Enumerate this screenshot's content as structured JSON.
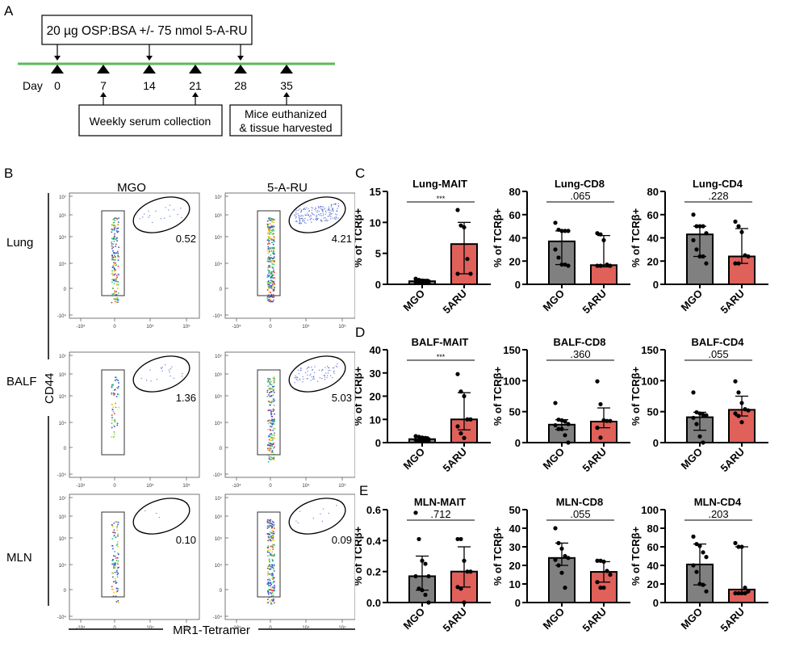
{
  "panels": {
    "A": "A",
    "B": "B",
    "C": "C",
    "D": "D",
    "E": "E"
  },
  "timeline": {
    "top_box": "20 µg OSP:BSA +/- 75 nmol 5-A-RU",
    "day_label": "Day",
    "days": [
      "0",
      "7",
      "14",
      "21",
      "28",
      "35"
    ],
    "immunization_days": [
      "0",
      "14",
      "28"
    ],
    "serum_days": [
      "7",
      "21"
    ],
    "serum_box": "Weekly serum collection",
    "harvest_box_line1": "Mice euthanized",
    "harvest_box_line2": "& tissue harvested",
    "harvest_day": "35",
    "line_color": "#5cb85c"
  },
  "flow": {
    "columns": [
      "MGO",
      "5-A-RU"
    ],
    "rows": [
      "Lung",
      "BALF",
      "MLN"
    ],
    "y_axis_label": "CD44",
    "x_axis_label": "MR1-Tetramer",
    "y_ticks": [
      "10^7",
      "10^6",
      "10^5",
      "10^4",
      "0",
      "-10^4"
    ],
    "x_ticks": [
      "-10^4",
      "0",
      "10^4",
      "10^5"
    ],
    "gate_values": [
      [
        "0.52",
        "4.21"
      ],
      [
        "1.36",
        "5.03"
      ],
      [
        "0.10",
        "0.09"
      ]
    ]
  },
  "colors": {
    "mgo": "#808080",
    "aru": "#e0605a"
  },
  "chart_data": [
    {
      "type": "bar",
      "title": "Lung-MAIT",
      "ylabel": "% of TCRβ+",
      "categories": [
        "MGO",
        "5ARU"
      ],
      "ylim": [
        0,
        15
      ],
      "yticks": [
        0,
        5,
        10,
        15
      ],
      "sig": "***",
      "series": [
        {
          "name": "MGO",
          "value": 0.5,
          "err_hi": 0.8,
          "err_lo": 0.3,
          "points": [
            0.9,
            0.7,
            0.6,
            0.5,
            0.5,
            0.4,
            0.4,
            0.3,
            0.3,
            0.2
          ]
        },
        {
          "name": "5ARU",
          "value": 6.5,
          "err_hi": 10.0,
          "err_lo": 1.7,
          "points": [
            12.0,
            9.5,
            9.2,
            4.1,
            1.7,
            1.7
          ]
        }
      ]
    },
    {
      "type": "bar",
      "title": "Lung-CD8",
      "ylabel": "% of TCRβ+",
      "categories": [
        "MGO",
        "5ARU"
      ],
      "ylim": [
        0,
        80
      ],
      "yticks": [
        0,
        20,
        40,
        60,
        80
      ],
      "sig": ".065",
      "series": [
        {
          "name": "MGO",
          "value": 37,
          "err_hi": 46,
          "err_lo": 17,
          "points": [
            53,
            47,
            46,
            46,
            46,
            30,
            23,
            17,
            17,
            16
          ]
        },
        {
          "name": "5ARU",
          "value": 16.5,
          "err_hi": 42,
          "err_lo": 15,
          "points": [
            44,
            43,
            38,
            17,
            16,
            16,
            16
          ]
        }
      ]
    },
    {
      "type": "bar",
      "title": "Lung-CD4",
      "ylabel": "% of TCRβ+",
      "categories": [
        "MGO",
        "5ARU"
      ],
      "ylim": [
        0,
        80
      ],
      "yticks": [
        0,
        20,
        40,
        60,
        80
      ],
      "sig": ".228",
      "series": [
        {
          "name": "MGO",
          "value": 43,
          "err_hi": 50,
          "err_lo": 24,
          "points": [
            60,
            50,
            50,
            50,
            44,
            38,
            30,
            24,
            24,
            18
          ]
        },
        {
          "name": "5ARU",
          "value": 24,
          "err_hi": 48,
          "err_lo": 18,
          "points": [
            54,
            50,
            45,
            25,
            24,
            18,
            18
          ]
        }
      ]
    },
    {
      "type": "bar",
      "title": "BALF-MAIT",
      "ylabel": "% of TCRβ+",
      "categories": [
        "MGO",
        "5ARU"
      ],
      "ylim": [
        0,
        40
      ],
      "yticks": [
        0,
        10,
        20,
        30,
        40
      ],
      "sig": "***",
      "series": [
        {
          "name": "MGO",
          "value": 1.5,
          "err_hi": 2.5,
          "err_lo": 0.6,
          "points": [
            2.8,
            2.5,
            2.2,
            2.0,
            1.5,
            1.2,
            1.0,
            0.8,
            0.6,
            0.5
          ]
        },
        {
          "name": "5ARU",
          "value": 10,
          "err_hi": 21.5,
          "err_lo": 5.5,
          "points": [
            29.5,
            22,
            20,
            10,
            10,
            7,
            4,
            2
          ]
        }
      ]
    },
    {
      "type": "bar",
      "title": "BALF-CD8",
      "ylabel": "% of TCRβ+",
      "categories": [
        "MGO",
        "5ARU"
      ],
      "ylim": [
        0,
        150
      ],
      "yticks": [
        0,
        50,
        100,
        150
      ],
      "sig": ".360",
      "series": [
        {
          "name": "MGO",
          "value": 29,
          "err_hi": 37,
          "err_lo": 21,
          "points": [
            64,
            37,
            36,
            34,
            30,
            28,
            22,
            22,
            12,
            0
          ]
        },
        {
          "name": "5ARU",
          "value": 34,
          "err_hi": 56,
          "err_lo": 24,
          "points": [
            99,
            62,
            36,
            35,
            35,
            24,
            8
          ]
        }
      ]
    },
    {
      "type": "bar",
      "title": "BALF-CD4",
      "ylabel": "% of TCRβ+",
      "categories": [
        "MGO",
        "5ARU"
      ],
      "ylim": [
        0,
        150
      ],
      "yticks": [
        0,
        50,
        100,
        150
      ],
      "sig": ".055",
      "series": [
        {
          "name": "MGO",
          "value": 41,
          "err_hi": 49,
          "err_lo": 20,
          "points": [
            81,
            49,
            47,
            45,
            44,
            40,
            30,
            10,
            0
          ]
        },
        {
          "name": "5ARU",
          "value": 53,
          "err_hi": 75,
          "err_lo": 43,
          "points": [
            99,
            81,
            64,
            54,
            52,
            47,
            43,
            33
          ]
        }
      ]
    },
    {
      "type": "bar",
      "title": "MLN-MAIT",
      "ylabel": "% of TCRβ+",
      "categories": [
        "MGO",
        "5ARU"
      ],
      "ylim": [
        0,
        0.6
      ],
      "yticks": [
        0.0,
        0.2,
        0.4,
        0.6
      ],
      "ytick_labels": [
        "0.0",
        "0.2",
        "0.4",
        "0.6"
      ],
      "sig": ".712",
      "series": [
        {
          "name": "MGO",
          "value": 0.17,
          "err_hi": 0.3,
          "err_lo": 0.08,
          "points": [
            0.58,
            0.41,
            0.27,
            0.25,
            0.17,
            0.17,
            0.09,
            0.08,
            0.05,
            0.0
          ]
        },
        {
          "name": "5ARU",
          "value": 0.2,
          "err_hi": 0.36,
          "err_lo": 0.1,
          "points": [
            0.41,
            0.41,
            0.27,
            0.2,
            0.2,
            0.1,
            0.09,
            0.0
          ]
        }
      ]
    },
    {
      "type": "bar",
      "title": "MLN-CD8",
      "ylabel": "% of TCRβ+",
      "categories": [
        "MGO",
        "5ARU"
      ],
      "ylim": [
        0,
        50
      ],
      "yticks": [
        0,
        10,
        20,
        30,
        40,
        50
      ],
      "sig": ".055",
      "series": [
        {
          "name": "MGO",
          "value": 24,
          "err_hi": 32,
          "err_lo": 20,
          "points": [
            40,
            32,
            29,
            25,
            24,
            23,
            20,
            16,
            8
          ]
        },
        {
          "name": "5ARU",
          "value": 16.5,
          "err_hi": 22,
          "err_lo": 11,
          "points": [
            22.5,
            22.5,
            22,
            17,
            15,
            11,
            8,
            8
          ]
        }
      ]
    },
    {
      "type": "bar",
      "title": "MLN-CD4",
      "ylabel": "% of TCRβ+",
      "categories": [
        "MGO",
        "5ARU"
      ],
      "ylim": [
        0,
        100
      ],
      "yticks": [
        0,
        20,
        40,
        60,
        80,
        100
      ],
      "sig": ".203",
      "series": [
        {
          "name": "MGO",
          "value": 41,
          "err_hi": 63,
          "err_lo": 19,
          "points": [
            71,
            63,
            61,
            54,
            49,
            40,
            33,
            20,
            19,
            12
          ]
        },
        {
          "name": "5ARU",
          "value": 14,
          "err_hi": 60,
          "err_lo": 10,
          "points": [
            64,
            60,
            60,
            16,
            12,
            10,
            10,
            10,
            10
          ]
        }
      ]
    }
  ]
}
